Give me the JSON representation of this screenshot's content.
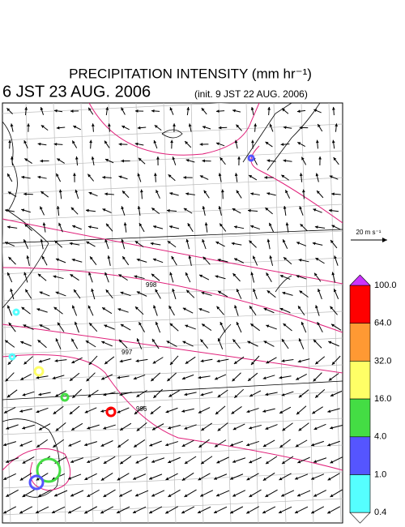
{
  "header": {
    "title": "PRECIPITATION INTENSITY (mm hr⁻¹)",
    "time": "6 JST 23 AUG. 2006",
    "init": "(init. 9 JST 22 AUG. 2006)"
  },
  "wind_reference": "20 m s⁻¹",
  "isobar_labels": [
    "998",
    "997",
    "996"
  ],
  "colorbar": {
    "labels": [
      "100.0",
      "64.0",
      "32.0",
      "16.0",
      "4.0",
      "1.0",
      "0.4"
    ],
    "colors": [
      "#ff0000",
      "#ff9933",
      "#ffff66",
      "#44dd44",
      "#5555ff",
      "#55ffff"
    ],
    "over_color": "#cc33ff",
    "under_color": "#ffffff"
  }
}
